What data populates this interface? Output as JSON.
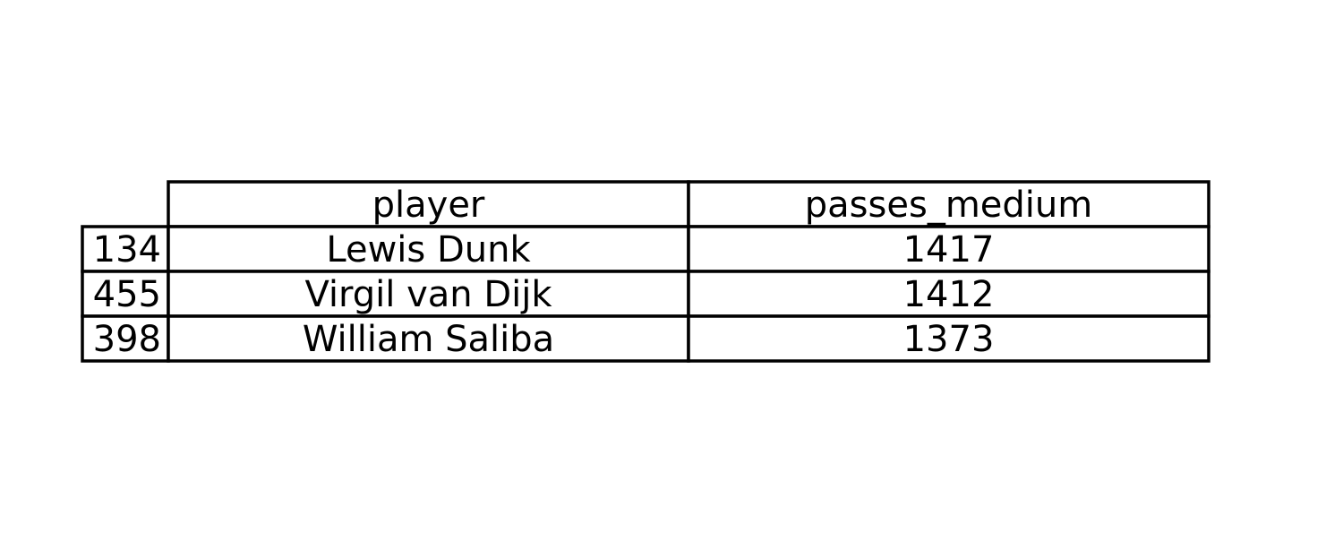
{
  "chart_data": {
    "type": "table",
    "columns": [
      "player",
      "passes_medium"
    ],
    "rows": [
      {
        "index": "134",
        "cells": [
          "Lewis Dunk",
          "1417"
        ]
      },
      {
        "index": "455",
        "cells": [
          "Virgil van Dijk",
          "1412"
        ]
      },
      {
        "index": "398",
        "cells": [
          "William Saliba",
          "1373"
        ]
      }
    ]
  }
}
